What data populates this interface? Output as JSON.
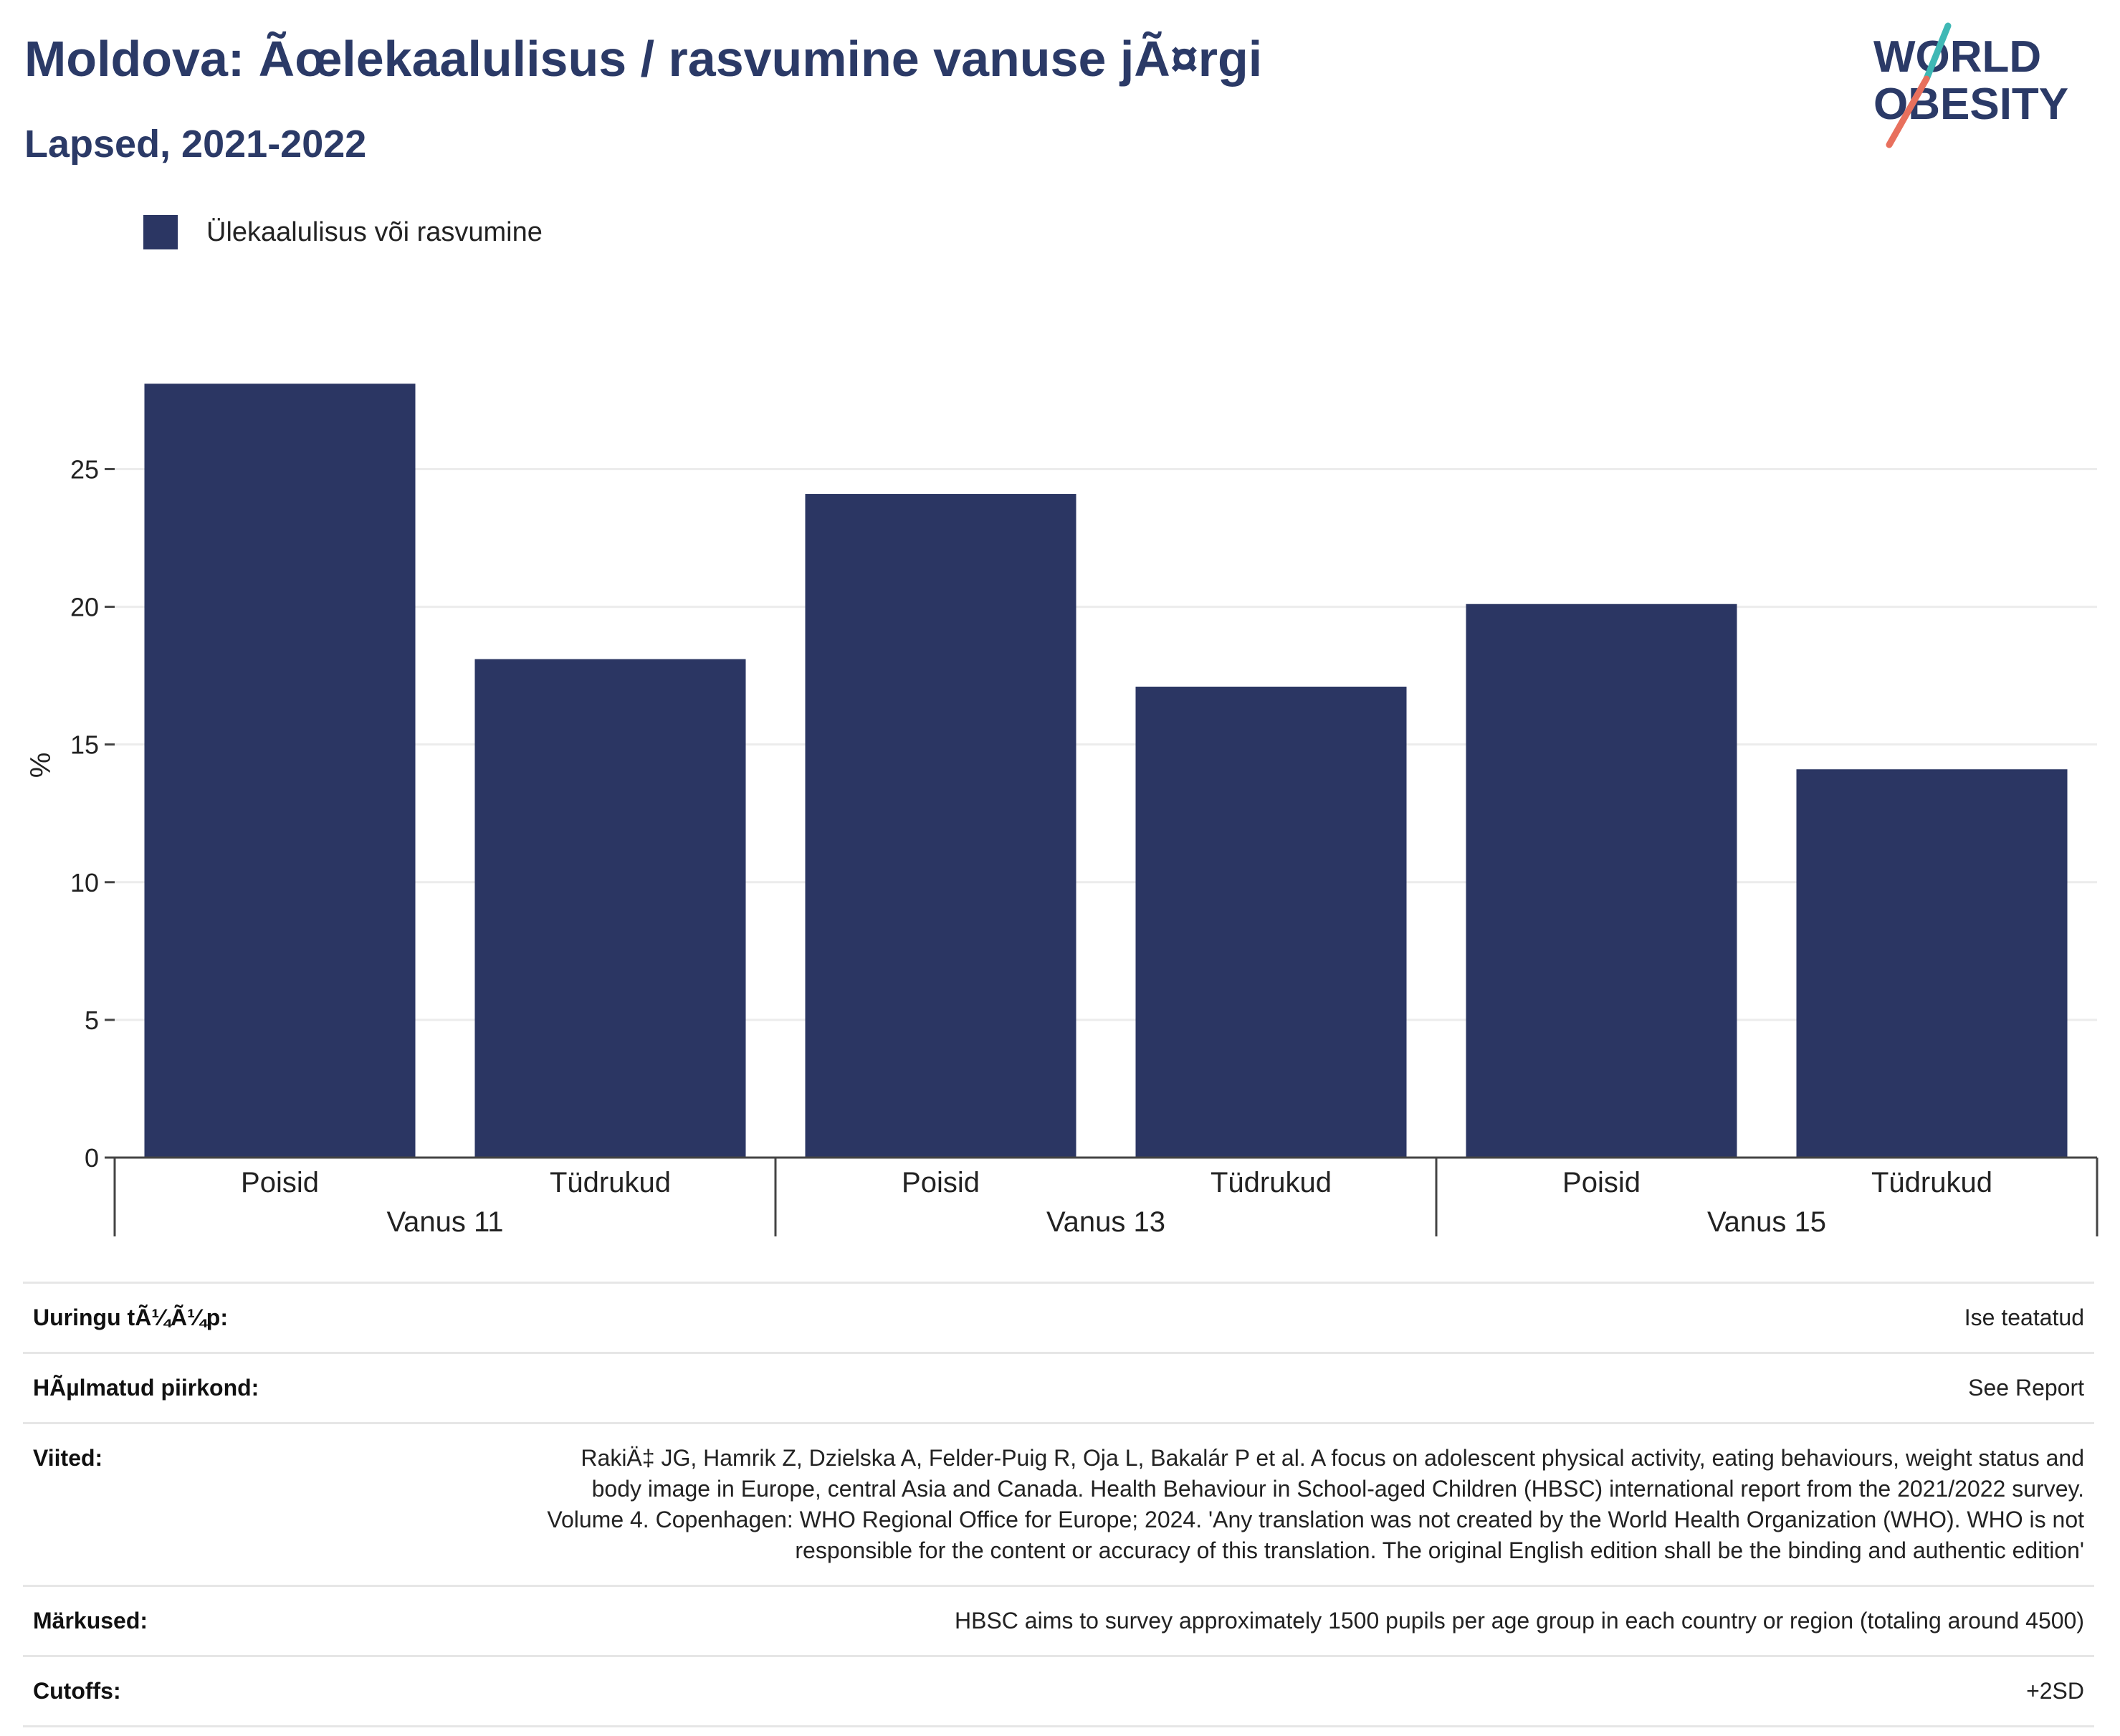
{
  "header": {
    "title": "Moldova: Ãœlekaalulisus / rasvumine vanuse jÃ¤rgi",
    "subtitle": "Lapsed, 2021-2022"
  },
  "logo": {
    "line1": "WORLD",
    "line2": "OBESITY",
    "color_text": "#2b3a67",
    "color_accent_teal": "#3fb8b5",
    "color_accent_coral": "#e8705d"
  },
  "legend": {
    "label": "Ülekaalulisus või rasvumine",
    "color": "#2b3663"
  },
  "chart_data": {
    "type": "bar",
    "ylabel": "%",
    "ylim": [
      0,
      28.5
    ],
    "yticks": [
      0,
      5,
      10,
      15,
      20,
      25
    ],
    "grid": true,
    "legend_position": "top-left",
    "groups": [
      {
        "label": "Vanus 11",
        "categories": [
          "Poisid",
          "Tüdrukud"
        ],
        "values": [
          28.1,
          18.1
        ]
      },
      {
        "label": "Vanus 13",
        "categories": [
          "Poisid",
          "Tüdrukud"
        ],
        "values": [
          24.1,
          17.1
        ]
      },
      {
        "label": "Vanus 15",
        "categories": [
          "Poisid",
          "Tüdrukud"
        ],
        "values": [
          20.1,
          14.1
        ]
      }
    ],
    "series": [
      {
        "name": "Ülekaalulisus või rasvumine",
        "color": "#2b3663",
        "values": [
          28.1,
          18.1,
          24.1,
          17.1,
          20.1,
          14.1
        ]
      }
    ]
  },
  "meta": {
    "rows": [
      {
        "label": "Uuringu tÃ¼Ã¼p:",
        "value": "Ise teatatud"
      },
      {
        "label": "HÃµlmatud piirkond:",
        "value": "See Report"
      },
      {
        "label": "Viited:",
        "value": "RakiÄ‡ JG, Hamrik Z, Dzielska A, Felder-Puig R, Oja L, Bakalár P et al. A focus on adolescent physical activity, eating behaviours, weight status and body image in Europe, central Asia and Canada. Health Behaviour in School-aged Children (HBSC) international report from the 2021/2022 survey. Volume 4. Copenhagen: WHO Regional Office for Europe; 2024. 'Any translation was not created by the World Health Organization (WHO). WHO is not responsible for the content or accuracy of this translation. The original English edition shall be the binding and authentic edition'"
      },
      {
        "label": "Märkused:",
        "value": "HBSC aims to survey approximately 1500 pupils per age group in each country or region (totaling around 4500)"
      },
      {
        "label": "Cutoffs:",
        "value": "+2SD"
      }
    ]
  }
}
